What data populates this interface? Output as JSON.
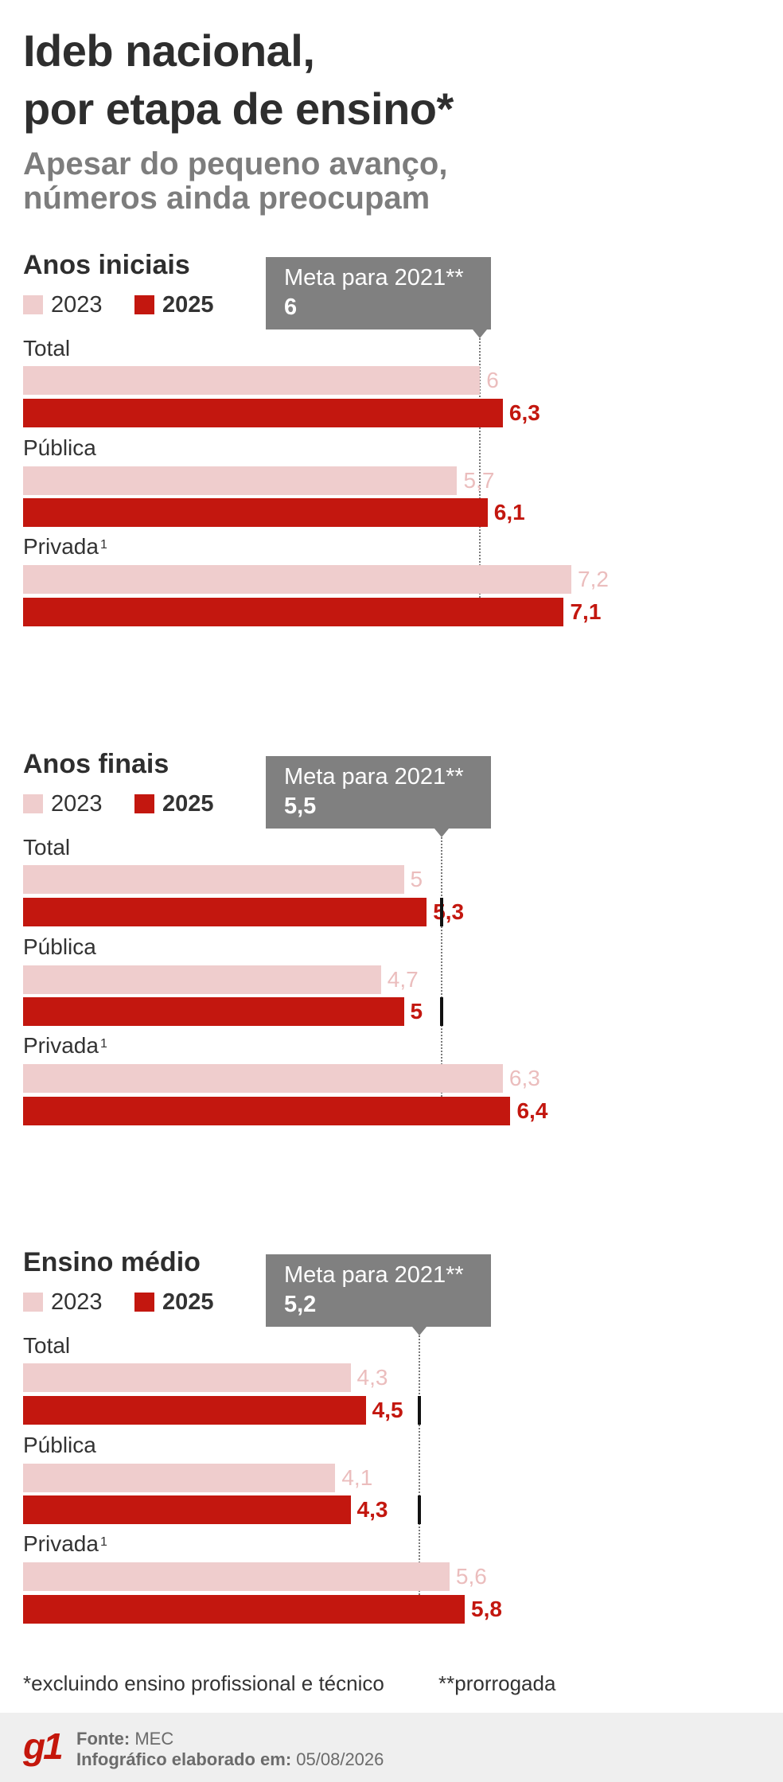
{
  "title": {
    "line1": "Ideb nacional,",
    "line2": "por etapa de ensino*"
  },
  "subtitle": {
    "line1": "Apesar do pequeno avanço,",
    "line2": "números ainda preocupam"
  },
  "colors": {
    "series_2023": "#efcdcd",
    "series_2025": "#c3170f",
    "target_box": "#808080",
    "logo": "#c4170c"
  },
  "chart_data": [
    {
      "type": "bar",
      "orientation": "horizontal",
      "title": "Anos iniciais",
      "categories": [
        "Total",
        "Pública",
        "Privada"
      ],
      "category_notes": [
        "",
        "",
        "1"
      ],
      "series": [
        {
          "name": "2023",
          "values": [
            6,
            5.7,
            7.2
          ]
        },
        {
          "name": "2025",
          "values": [
            6.3,
            6.1,
            7.1
          ]
        }
      ],
      "target": {
        "label": "Meta para 2021**",
        "value": 6,
        "value_text": "6"
      }
    },
    {
      "type": "bar",
      "orientation": "horizontal",
      "title": "Anos finais",
      "categories": [
        "Total",
        "Pública",
        "Privada"
      ],
      "category_notes": [
        "",
        "",
        "1"
      ],
      "series": [
        {
          "name": "2023",
          "values": [
            5,
            4.7,
            6.3
          ]
        },
        {
          "name": "2025",
          "values": [
            5.3,
            5,
            6.4
          ]
        }
      ],
      "target": {
        "label": "Meta para 2021**",
        "value": 5.5,
        "value_text": "5,5"
      }
    },
    {
      "type": "bar",
      "orientation": "horizontal",
      "title": "Ensino médio",
      "categories": [
        "Total",
        "Pública",
        "Privada"
      ],
      "category_notes": [
        "",
        "",
        "1"
      ],
      "series": [
        {
          "name": "2023",
          "values": [
            4.3,
            4.1,
            5.6
          ]
        },
        {
          "name": "2025",
          "values": [
            4.5,
            4.3,
            5.8
          ]
        }
      ],
      "target": {
        "label": "Meta para 2021**",
        "value": 5.2,
        "value_text": "5,2"
      }
    }
  ],
  "footnotes": {
    "left": "*excluindo ensino profissional e técnico",
    "right": "**prorrogada"
  },
  "footer": {
    "logo": "g1",
    "source_label": "Fonte:",
    "source": "MEC",
    "date_label": "Infográfico elaborado em:",
    "date": "05/08/2026"
  }
}
